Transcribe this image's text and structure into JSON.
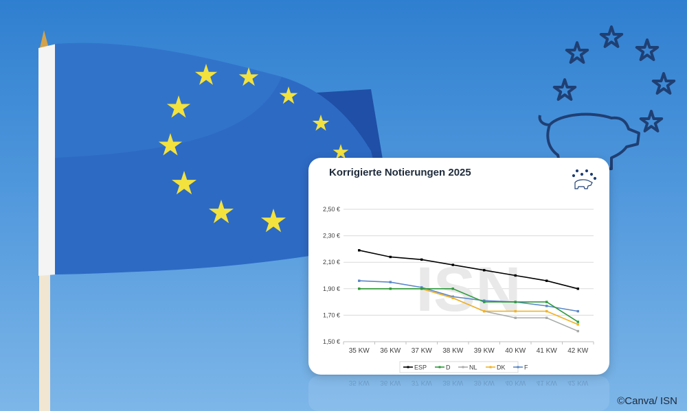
{
  "background": {
    "flag_icon": "eu-flag-on-pole",
    "stars_pig_icon": "eu-stars-pig-icon",
    "sky_color": "#3d8ad6",
    "flag_color": "#2e6cc5",
    "star_color": "#f2e13a"
  },
  "credit": "©Canva/ ISN",
  "chart_data": {
    "type": "line",
    "title": "Korrigierte Notierungen 2025",
    "categories": [
      "35 KW",
      "36 KW",
      "37 KW",
      "38 KW",
      "39 KW",
      "40 KW",
      "41 KW",
      "42 KW"
    ],
    "y_ticks": [
      "1,50 €",
      "1,70 €",
      "1,90 €",
      "2,10 €",
      "2,30 €",
      "2,50 €"
    ],
    "ylim": [
      1.5,
      2.5
    ],
    "ystep": 0.2,
    "watermark": "ISN",
    "grid": true,
    "legend_position": "bottom",
    "series": [
      {
        "name": "ESP",
        "color": "#000000",
        "values": [
          2.19,
          2.14,
          2.12,
          2.08,
          2.04,
          2.0,
          1.96,
          1.9
        ]
      },
      {
        "name": "D",
        "color": "#2e9a3b",
        "values": [
          1.9,
          1.9,
          1.9,
          1.9,
          1.8,
          1.8,
          1.8,
          1.65
        ]
      },
      {
        "name": "NL",
        "color": "#a8aaa9",
        "values": [
          1.9,
          1.9,
          1.9,
          1.83,
          1.73,
          1.68,
          1.68,
          1.58
        ]
      },
      {
        "name": "DK",
        "color": "#f2b224",
        "values": [
          1.9,
          1.9,
          1.9,
          1.83,
          1.73,
          1.73,
          1.73,
          1.63
        ]
      },
      {
        "name": "F",
        "color": "#5a86c8",
        "values": [
          1.96,
          1.95,
          1.91,
          1.84,
          1.81,
          1.8,
          1.77,
          1.73
        ]
      }
    ]
  }
}
